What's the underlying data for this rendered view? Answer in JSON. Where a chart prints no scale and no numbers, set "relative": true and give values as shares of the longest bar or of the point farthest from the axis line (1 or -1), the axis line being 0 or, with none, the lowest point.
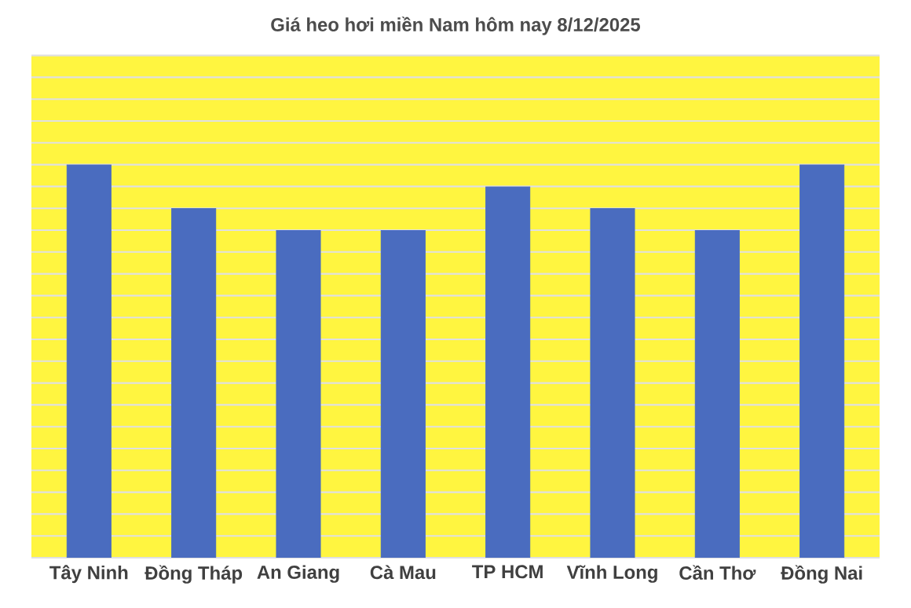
{
  "chart_data": {
    "type": "bar",
    "title": "Giá heo hơi miền Nam hôm nay 8/12/2025",
    "categories": [
      "Tây Ninh",
      "Đồng Tháp",
      "An Giang",
      "Cà Mau",
      "TP HCM",
      "Vĩnh Long",
      "Cần Thơ",
      "Đồng Nai"
    ],
    "values": [
      1,
      0.889,
      0.833,
      0.833,
      0.944,
      0.889,
      0.833,
      1
    ],
    "color": "#4a6cbf",
    "relative": true,
    "grid": "y"
  }
}
